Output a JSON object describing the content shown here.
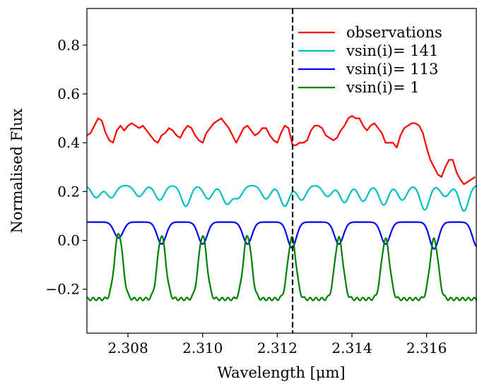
{
  "chart_data": {
    "type": "line",
    "xlabel": "Wavelength [μm]",
    "ylabel": "Normalised Flux",
    "xlim": [
      2.3069,
      2.31735
    ],
    "ylim": [
      -0.38,
      0.95
    ],
    "xticks": [
      2.308,
      2.31,
      2.312,
      2.314,
      2.316
    ],
    "xtick_labels": [
      "2.308",
      "2.310",
      "2.312",
      "2.314",
      "2.316"
    ],
    "yticks": [
      -0.2,
      0.0,
      0.2,
      0.4,
      0.6,
      0.8
    ],
    "ytick_labels": [
      "−0.2",
      "0.0",
      "0.2",
      "0.4",
      "0.6",
      "0.8"
    ],
    "vline": {
      "x": 2.31241,
      "style": "dashed",
      "color": "#000000"
    },
    "legend_position": "top-right",
    "grid": false,
    "series": [
      {
        "name": "observations",
        "color": "#ff0000",
        "x": [
          2.3069,
          2.307,
          2.3071,
          2.3072,
          2.3073,
          2.3074,
          2.3075,
          2.3076,
          2.3077,
          2.3078,
          2.3079,
          2.308,
          2.3081,
          2.3082,
          2.3083,
          2.3084,
          2.3085,
          2.3086,
          2.3087,
          2.3088,
          2.3089,
          2.309,
          2.3091,
          2.3092,
          2.3093,
          2.3094,
          2.3095,
          2.3096,
          2.3097,
          2.3098,
          2.3099,
          2.31,
          2.3101,
          2.3102,
          2.3103,
          2.3104,
          2.3105,
          2.3106,
          2.3107,
          2.3108,
          2.3109,
          2.311,
          2.3111,
          2.3112,
          2.3113,
          2.3114,
          2.3115,
          2.3116,
          2.3117,
          2.3118,
          2.3119,
          2.312,
          2.3121,
          2.3122,
          2.3123,
          2.31241,
          2.3125,
          2.3126,
          2.3127,
          2.3128,
          2.3129,
          2.313,
          2.3131,
          2.3132,
          2.3133,
          2.3134,
          2.3135,
          2.3136,
          2.3137,
          2.3138,
          2.3139,
          2.314,
          2.3141,
          2.3142,
          2.3143,
          2.3144,
          2.3145,
          2.3146,
          2.3147,
          2.3148,
          2.3149,
          2.315,
          2.3151,
          2.3152,
          2.3153,
          2.3154,
          2.3155,
          2.3156,
          2.3157,
          2.3158,
          2.3159,
          2.316,
          2.3161,
          2.3162,
          2.3163,
          2.3164,
          2.3165,
          2.3166,
          2.3167,
          2.3168,
          2.3169,
          2.317,
          2.3171,
          2.3172,
          2.3173
        ],
        "y": [
          0.43,
          0.44,
          0.47,
          0.5,
          0.49,
          0.44,
          0.41,
          0.4,
          0.45,
          0.47,
          0.45,
          0.47,
          0.48,
          0.47,
          0.46,
          0.47,
          0.45,
          0.43,
          0.41,
          0.4,
          0.43,
          0.44,
          0.46,
          0.45,
          0.43,
          0.42,
          0.45,
          0.47,
          0.46,
          0.43,
          0.41,
          0.4,
          0.44,
          0.46,
          0.48,
          0.49,
          0.5,
          0.48,
          0.46,
          0.43,
          0.4,
          0.43,
          0.46,
          0.47,
          0.45,
          0.43,
          0.44,
          0.46,
          0.46,
          0.43,
          0.41,
          0.4,
          0.44,
          0.47,
          0.46,
          0.39,
          0.39,
          0.4,
          0.4,
          0.41,
          0.45,
          0.47,
          0.47,
          0.46,
          0.43,
          0.42,
          0.41,
          0.42,
          0.45,
          0.47,
          0.5,
          0.51,
          0.5,
          0.5,
          0.47,
          0.45,
          0.47,
          0.48,
          0.46,
          0.44,
          0.4,
          0.4,
          0.4,
          0.38,
          0.43,
          0.46,
          0.47,
          0.48,
          0.48,
          0.47,
          0.44,
          0.38,
          0.33,
          0.3,
          0.27,
          0.26,
          0.3,
          0.33,
          0.33,
          0.28,
          0.25,
          0.23,
          0.24,
          0.25,
          0.26
        ]
      },
      {
        "name": "vsin(i)= 141",
        "color": "#00bfbf",
        "x0": 2.3069,
        "x1": 2.31735,
        "baseline": 0.225,
        "dips": [
          {
            "x": 2.30715,
            "depth": 0.05
          },
          {
            "x": 2.30755,
            "depth": 0.05
          },
          {
            "x": 2.3083,
            "depth": 0.045
          },
          {
            "x": 2.30885,
            "depth": 0.06
          },
          {
            "x": 2.30955,
            "depth": 0.085
          },
          {
            "x": 2.31015,
            "depth": 0.055
          },
          {
            "x": 2.31065,
            "depth": 0.075
          },
          {
            "x": 2.31095,
            "depth": 0.05
          },
          {
            "x": 2.3117,
            "depth": 0.055
          },
          {
            "x": 2.3122,
            "depth": 0.085
          },
          {
            "x": 2.31265,
            "depth": 0.06
          },
          {
            "x": 2.31335,
            "depth": 0.045
          },
          {
            "x": 2.3138,
            "depth": 0.07
          },
          {
            "x": 2.3143,
            "depth": 0.065
          },
          {
            "x": 2.31485,
            "depth": 0.08
          },
          {
            "x": 2.31535,
            "depth": 0.06
          },
          {
            "x": 2.31595,
            "depth": 0.1
          },
          {
            "x": 2.3165,
            "depth": 0.045
          },
          {
            "x": 2.317,
            "depth": 0.105
          }
        ]
      },
      {
        "name": "vsin(i)= 113",
        "color": "#0000ff",
        "x0": 2.3069,
        "x1": 2.31735,
        "baseline": 0.075,
        "dips": [
          {
            "x": 2.30775,
            "depth": 0.065
          },
          {
            "x": 2.3089,
            "depth": 0.09
          },
          {
            "x": 2.31,
            "depth": 0.09
          },
          {
            "x": 2.3112,
            "depth": 0.09
          },
          {
            "x": 2.31239,
            "depth": 0.105
          },
          {
            "x": 2.31365,
            "depth": 0.09
          },
          {
            "x": 2.3149,
            "depth": 0.09
          },
          {
            "x": 2.3162,
            "depth": 0.11
          },
          {
            "x": 2.31735,
            "depth": 0.1
          }
        ]
      },
      {
        "name": "vsin(i)= 1",
        "color": "#008000",
        "x0": 2.3069,
        "x1": 2.31735,
        "baseline": -0.24,
        "peaks": [
          {
            "x": 2.30775,
            "height": 0.27
          },
          {
            "x": 2.3089,
            "height": 0.26
          },
          {
            "x": 2.31,
            "height": 0.26
          },
          {
            "x": 2.3112,
            "height": 0.26
          },
          {
            "x": 2.31239,
            "height": 0.25
          },
          {
            "x": 2.31365,
            "height": 0.25
          },
          {
            "x": 2.3149,
            "height": 0.245
          },
          {
            "x": 2.3162,
            "height": 0.245
          }
        ]
      }
    ]
  }
}
